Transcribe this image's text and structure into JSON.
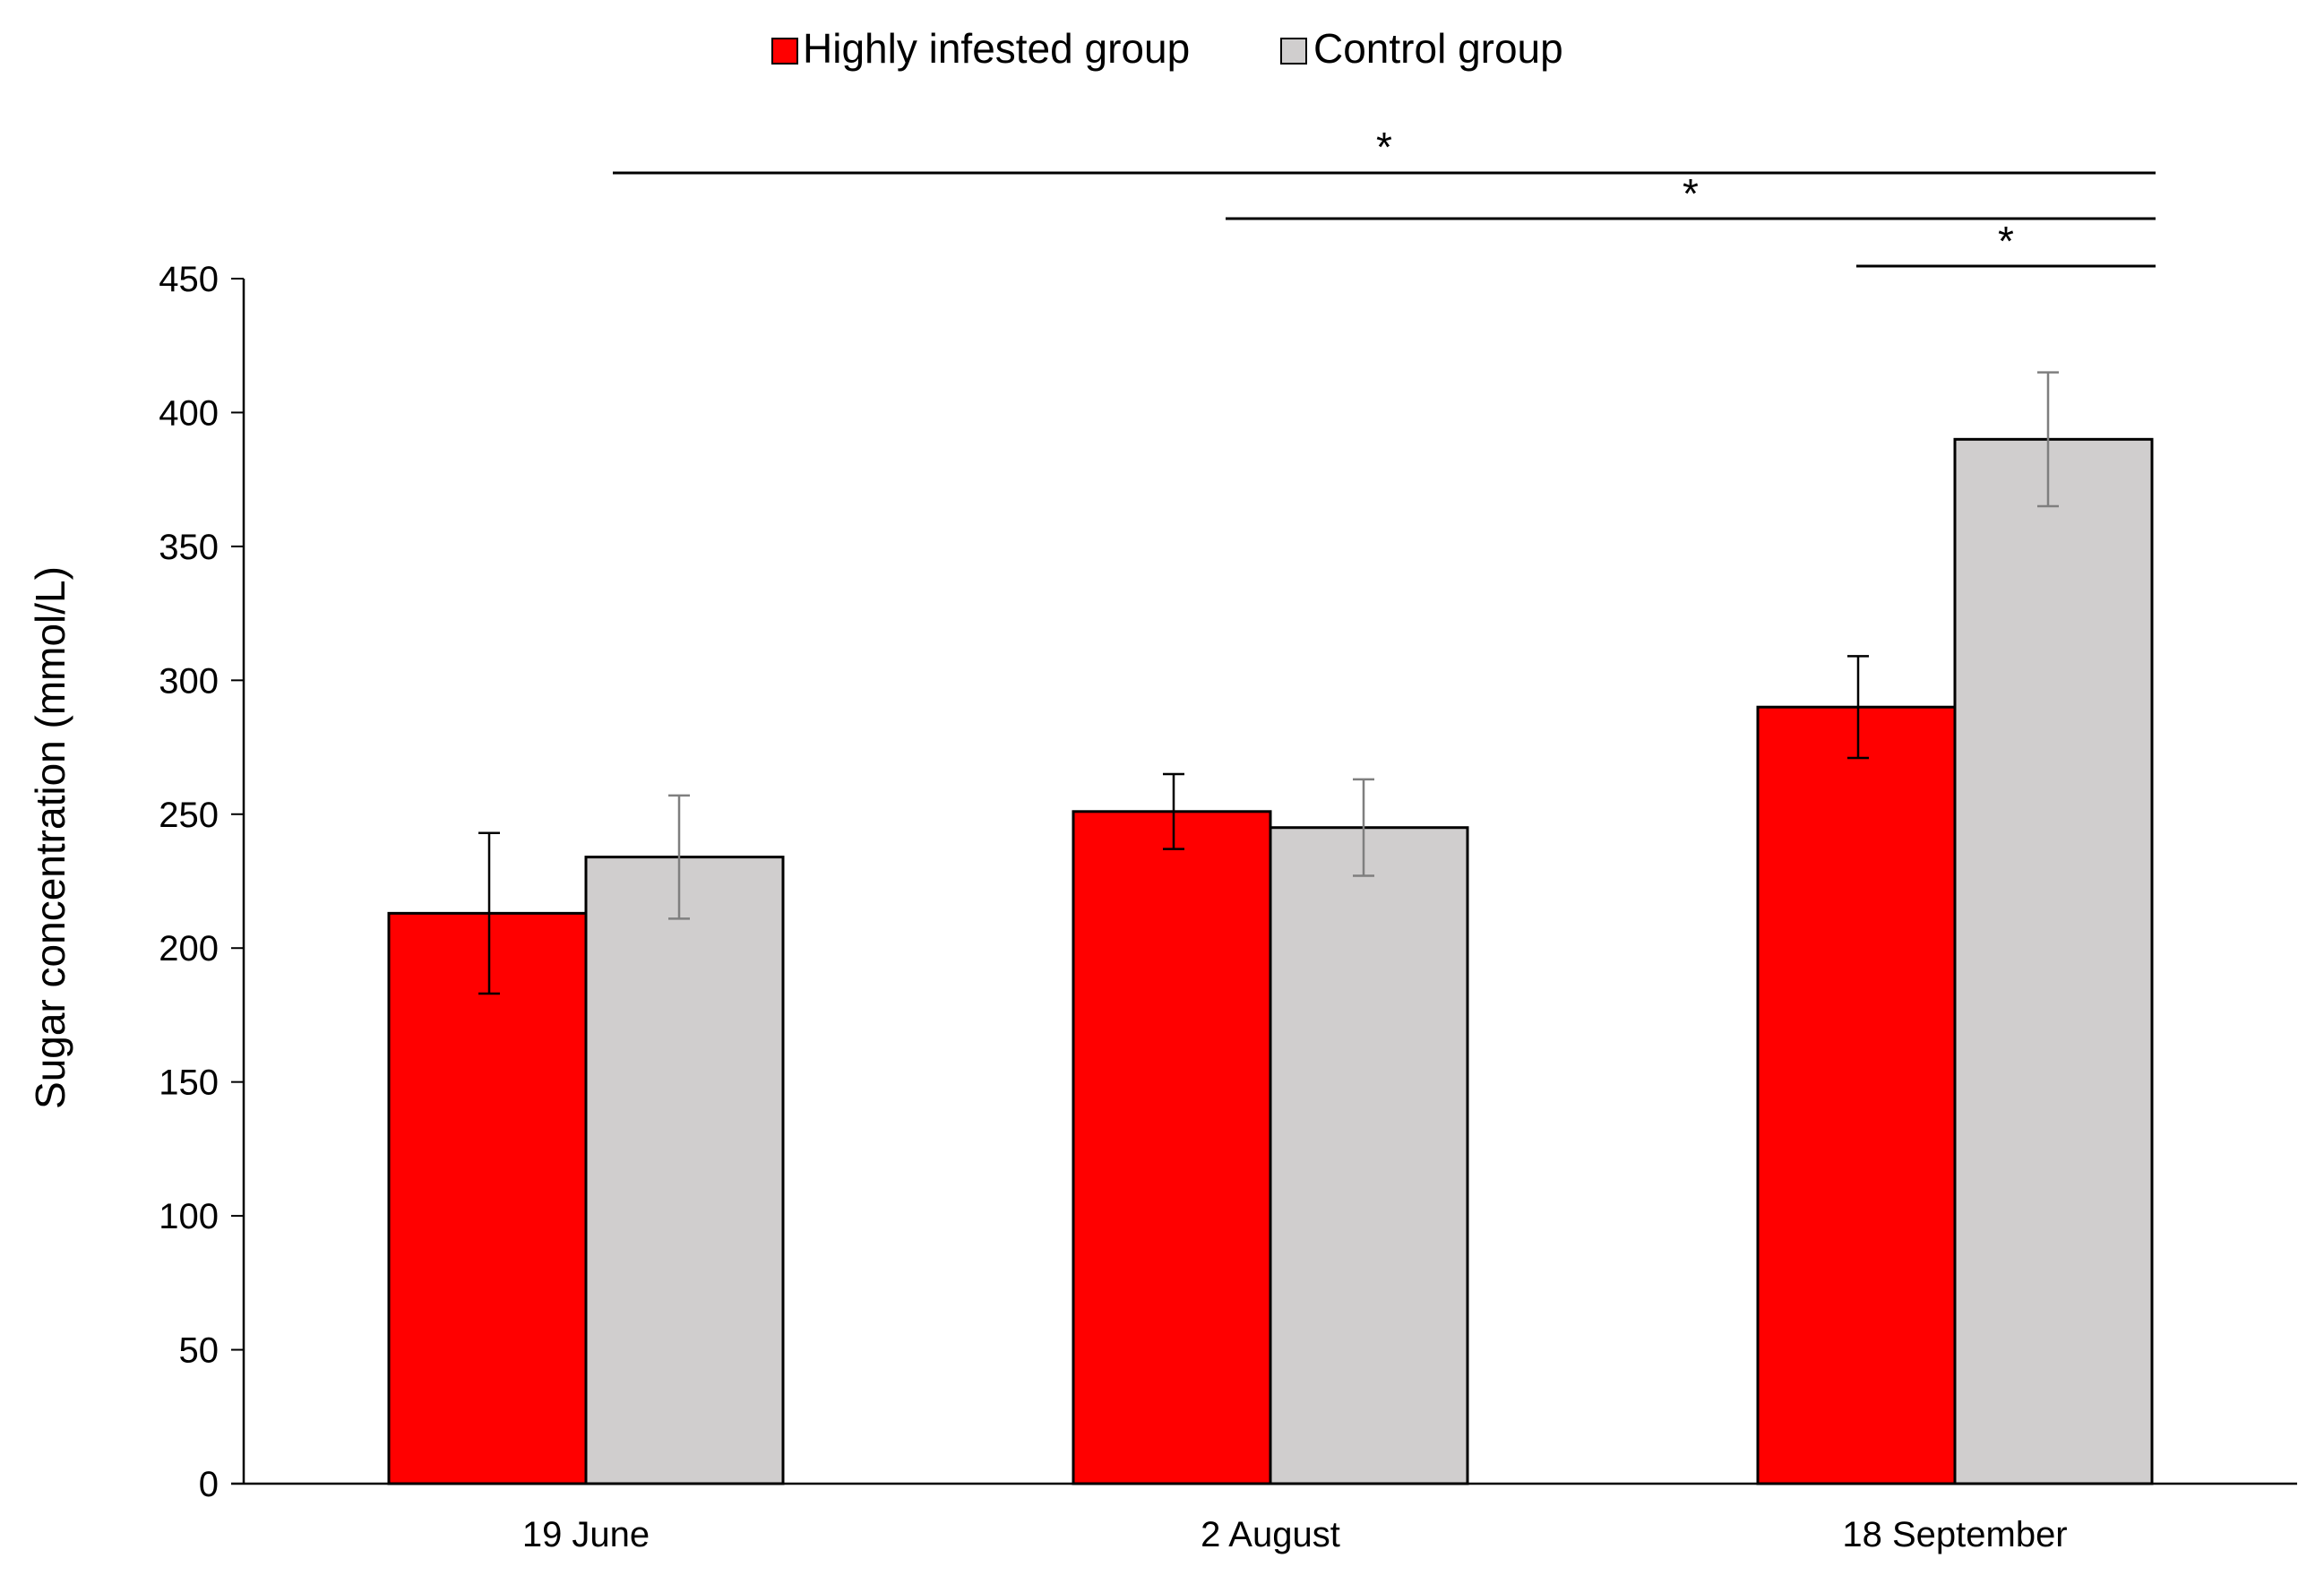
{
  "chart_data": {
    "type": "bar",
    "categories": [
      "19 June",
      "2 August",
      "18 September"
    ],
    "series": [
      {
        "name": "Highly infested group",
        "color": "#ff0000",
        "values": [
          213,
          251,
          290
        ],
        "errors": [
          30,
          14,
          19
        ],
        "error_color": "#000000"
      },
      {
        "name": "Control group",
        "color": "#d0cece",
        "values": [
          234,
          245,
          390
        ],
        "errors": [
          23,
          18,
          25
        ],
        "error_color": "#7f7f7f"
      }
    ],
    "title": "",
    "xlabel": "",
    "ylabel": "Sugar concentration (mmol/L)",
    "ylim": [
      0,
      450
    ],
    "yticks": [
      0,
      50,
      100,
      150,
      200,
      250,
      300,
      350,
      400,
      450
    ],
    "grid": false,
    "legend_position": "top-center",
    "significance": [
      {
        "from_category": 0,
        "to_category": 2,
        "label": "*"
      },
      {
        "from_category": 1,
        "to_category": 2,
        "label": "*"
      },
      {
        "from_category": 2,
        "to_category": 2,
        "label": "*"
      }
    ]
  }
}
